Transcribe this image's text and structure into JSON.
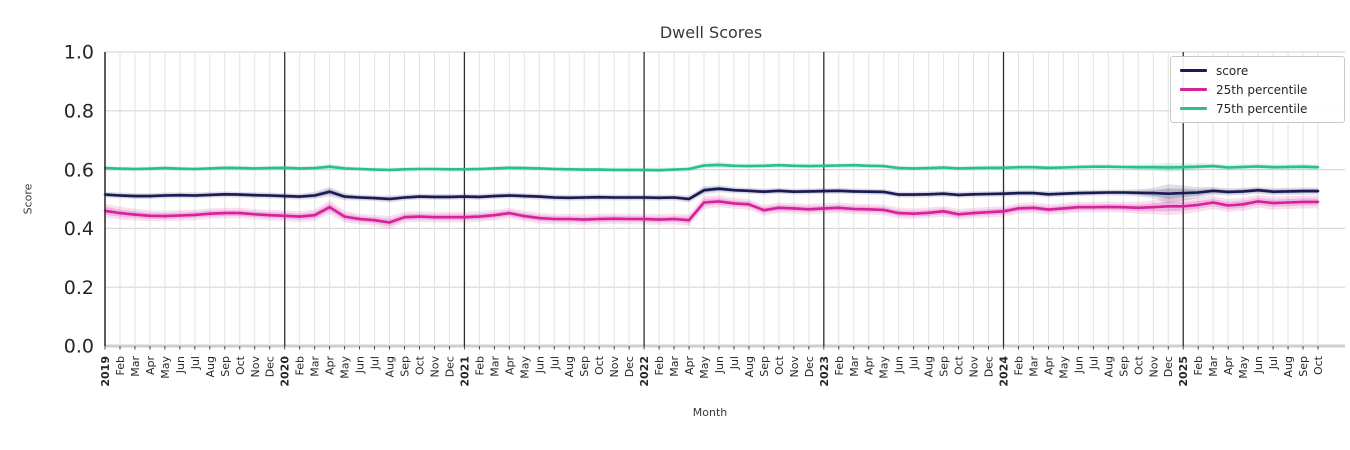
{
  "title": "Dwell Scores",
  "axis": {
    "xlabel": "Month",
    "ylabel": "Score"
  },
  "colors": {
    "score_line": "#1a1a55",
    "p25_line": "#d5219b",
    "p75_line": "#2abf8e",
    "grid_minor": "#e2e2e2",
    "grid_major": "#d9d9d9",
    "year_line": "#2e2e2e",
    "left_spine": "#333333",
    "bottom_base": "#cfcfcf",
    "tick_text": "#262626",
    "title_text": "#3a3a3a"
  },
  "chart_data": {
    "type": "line",
    "title": "Dwell Scores",
    "xlabel": "Month",
    "ylabel": "Score",
    "ylim": [
      0.0,
      1.0
    ],
    "yticks": [
      0.0,
      0.2,
      0.4,
      0.6,
      0.8,
      1.0
    ],
    "grid": true,
    "legend_position": "upper right",
    "x_labels": [
      "2019",
      "Feb",
      "Mar",
      "Apr",
      "May",
      "Jun",
      "Jul",
      "Aug",
      "Sep",
      "Oct",
      "Nov",
      "Dec",
      "2020",
      "Feb",
      "Mar",
      "Apr",
      "May",
      "Jun",
      "Jul",
      "Aug",
      "Sep",
      "Oct",
      "Nov",
      "Dec",
      "2021",
      "Feb",
      "Mar",
      "Apr",
      "May",
      "Jun",
      "Jul",
      "Aug",
      "Sep",
      "Oct",
      "Nov",
      "Dec",
      "2022",
      "Feb",
      "Mar",
      "Apr",
      "May",
      "Jun",
      "Jul",
      "Aug",
      "Sep",
      "Oct",
      "Nov",
      "Dec",
      "2023",
      "Feb",
      "Mar",
      "Apr",
      "May",
      "Jun",
      "Jul",
      "Aug",
      "Sep",
      "Oct",
      "Nov",
      "Dec",
      "2024",
      "Feb",
      "Mar",
      "Apr",
      "May",
      "Jun",
      "Jul",
      "Aug",
      "Sep",
      "Oct",
      "Nov",
      "Dec",
      "2025",
      "Feb",
      "Mar",
      "Apr",
      "May",
      "Jun",
      "Jul",
      "Aug",
      "Sep",
      "Oct"
    ],
    "year_boundary_indices": [
      12,
      24,
      36,
      48,
      60,
      72
    ],
    "series": [
      {
        "name": "score",
        "color": "#1a1a55",
        "values": [
          0.515,
          0.512,
          0.51,
          0.51,
          0.512,
          0.513,
          0.512,
          0.514,
          0.516,
          0.515,
          0.513,
          0.512,
          0.51,
          0.508,
          0.512,
          0.525,
          0.508,
          0.505,
          0.503,
          0.5,
          0.505,
          0.508,
          0.507,
          0.507,
          0.508,
          0.507,
          0.51,
          0.512,
          0.51,
          0.508,
          0.505,
          0.504,
          0.505,
          0.506,
          0.505,
          0.505,
          0.505,
          0.504,
          0.505,
          0.5,
          0.53,
          0.535,
          0.53,
          0.528,
          0.525,
          0.528,
          0.525,
          0.526,
          0.527,
          0.528,
          0.526,
          0.525,
          0.524,
          0.515,
          0.515,
          0.516,
          0.518,
          0.514,
          0.516,
          0.517,
          0.518,
          0.52,
          0.52,
          0.516,
          0.518,
          0.52,
          0.521,
          0.522,
          0.522,
          0.521,
          0.52,
          0.518,
          0.52,
          0.522,
          0.528,
          0.524,
          0.526,
          0.53,
          0.525,
          0.526,
          0.527,
          0.527
        ],
        "band_delta": [
          0.01,
          0.01,
          0.01,
          0.01,
          0.01,
          0.01,
          0.01,
          0.01,
          0.01,
          0.01,
          0.01,
          0.01,
          0.01,
          0.01,
          0.012,
          0.016,
          0.012,
          0.01,
          0.01,
          0.012,
          0.01,
          0.01,
          0.01,
          0.01,
          0.01,
          0.01,
          0.01,
          0.01,
          0.01,
          0.01,
          0.01,
          0.01,
          0.01,
          0.01,
          0.01,
          0.01,
          0.01,
          0.01,
          0.01,
          0.012,
          0.014,
          0.012,
          0.01,
          0.01,
          0.01,
          0.01,
          0.01,
          0.01,
          0.01,
          0.01,
          0.01,
          0.01,
          0.01,
          0.01,
          0.01,
          0.01,
          0.01,
          0.01,
          0.01,
          0.01,
          0.01,
          0.01,
          0.01,
          0.01,
          0.01,
          0.01,
          0.01,
          0.01,
          0.01,
          0.012,
          0.018,
          0.032,
          0.026,
          0.018,
          0.014,
          0.012,
          0.012,
          0.012,
          0.012,
          0.012,
          0.012,
          0.012
        ]
      },
      {
        "name": "25th percentile",
        "color": "#d5219b",
        "values": [
          0.46,
          0.452,
          0.447,
          0.443,
          0.442,
          0.444,
          0.446,
          0.45,
          0.452,
          0.452,
          0.448,
          0.445,
          0.443,
          0.44,
          0.445,
          0.472,
          0.44,
          0.432,
          0.428,
          0.42,
          0.438,
          0.44,
          0.438,
          0.438,
          0.438,
          0.44,
          0.445,
          0.452,
          0.442,
          0.435,
          0.432,
          0.432,
          0.43,
          0.432,
          0.433,
          0.432,
          0.432,
          0.43,
          0.432,
          0.428,
          0.488,
          0.492,
          0.485,
          0.482,
          0.462,
          0.47,
          0.468,
          0.465,
          0.468,
          0.47,
          0.466,
          0.465,
          0.463,
          0.452,
          0.45,
          0.453,
          0.458,
          0.448,
          0.452,
          0.455,
          0.458,
          0.468,
          0.47,
          0.464,
          0.468,
          0.472,
          0.472,
          0.473,
          0.472,
          0.47,
          0.472,
          0.475,
          0.475,
          0.48,
          0.488,
          0.478,
          0.482,
          0.492,
          0.486,
          0.488,
          0.49,
          0.49
        ],
        "band_delta": [
          0.024,
          0.022,
          0.02,
          0.018,
          0.018,
          0.018,
          0.018,
          0.018,
          0.018,
          0.018,
          0.018,
          0.018,
          0.018,
          0.018,
          0.02,
          0.024,
          0.02,
          0.018,
          0.018,
          0.022,
          0.018,
          0.018,
          0.018,
          0.018,
          0.018,
          0.018,
          0.018,
          0.018,
          0.018,
          0.018,
          0.018,
          0.018,
          0.018,
          0.018,
          0.018,
          0.018,
          0.018,
          0.018,
          0.018,
          0.02,
          0.022,
          0.02,
          0.018,
          0.018,
          0.018,
          0.018,
          0.018,
          0.018,
          0.018,
          0.018,
          0.018,
          0.018,
          0.018,
          0.018,
          0.018,
          0.018,
          0.018,
          0.018,
          0.018,
          0.018,
          0.018,
          0.018,
          0.018,
          0.018,
          0.018,
          0.018,
          0.018,
          0.018,
          0.018,
          0.02,
          0.024,
          0.03,
          0.026,
          0.024,
          0.022,
          0.022,
          0.022,
          0.022,
          0.022,
          0.022,
          0.022,
          0.022
        ]
      },
      {
        "name": "75th percentile",
        "color": "#2abf8e",
        "values": [
          0.605,
          0.603,
          0.602,
          0.603,
          0.605,
          0.603,
          0.602,
          0.604,
          0.606,
          0.605,
          0.604,
          0.605,
          0.606,
          0.604,
          0.605,
          0.61,
          0.604,
          0.602,
          0.6,
          0.599,
          0.601,
          0.602,
          0.602,
          0.601,
          0.601,
          0.602,
          0.604,
          0.606,
          0.605,
          0.604,
          0.602,
          0.601,
          0.6,
          0.6,
          0.599,
          0.599,
          0.599,
          0.598,
          0.6,
          0.602,
          0.614,
          0.616,
          0.613,
          0.612,
          0.613,
          0.615,
          0.613,
          0.612,
          0.613,
          0.614,
          0.615,
          0.613,
          0.612,
          0.605,
          0.604,
          0.605,
          0.607,
          0.604,
          0.605,
          0.606,
          0.606,
          0.608,
          0.608,
          0.606,
          0.607,
          0.609,
          0.61,
          0.61,
          0.609,
          0.608,
          0.608,
          0.607,
          0.608,
          0.61,
          0.612,
          0.607,
          0.609,
          0.611,
          0.608,
          0.609,
          0.61,
          0.608
        ],
        "band_delta": [
          0.008,
          0.008,
          0.008,
          0.008,
          0.008,
          0.008,
          0.008,
          0.008,
          0.008,
          0.008,
          0.008,
          0.008,
          0.008,
          0.008,
          0.008,
          0.01,
          0.008,
          0.008,
          0.008,
          0.008,
          0.008,
          0.008,
          0.008,
          0.008,
          0.008,
          0.008,
          0.008,
          0.008,
          0.008,
          0.008,
          0.008,
          0.008,
          0.008,
          0.008,
          0.008,
          0.008,
          0.008,
          0.008,
          0.008,
          0.008,
          0.01,
          0.01,
          0.008,
          0.008,
          0.008,
          0.008,
          0.008,
          0.008,
          0.008,
          0.008,
          0.008,
          0.008,
          0.008,
          0.008,
          0.008,
          0.008,
          0.008,
          0.008,
          0.008,
          0.008,
          0.008,
          0.008,
          0.008,
          0.008,
          0.008,
          0.008,
          0.008,
          0.008,
          0.008,
          0.01,
          0.012,
          0.016,
          0.014,
          0.012,
          0.01,
          0.01,
          0.01,
          0.01,
          0.01,
          0.01,
          0.01,
          0.01
        ]
      }
    ]
  }
}
